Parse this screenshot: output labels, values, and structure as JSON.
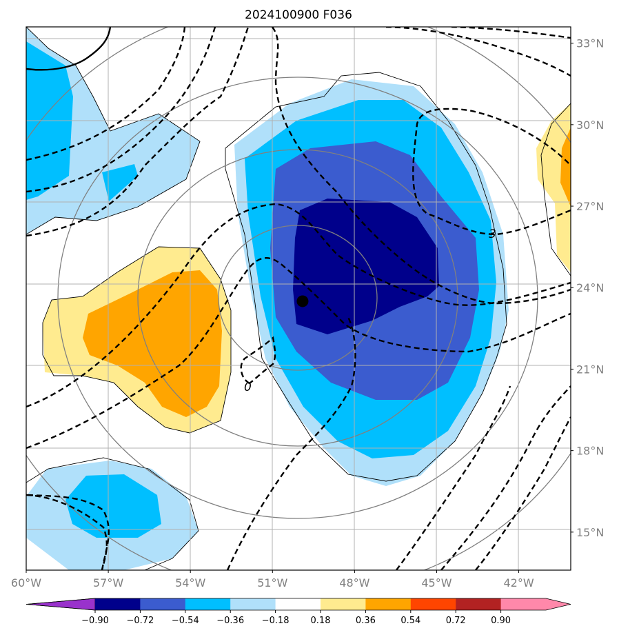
{
  "chart_data": {
    "type": "heatmap",
    "title": "2024100900 F036",
    "xlabel": "",
    "ylabel": "",
    "x_range_deg": [
      -60,
      -40.1
    ],
    "y_range_deg": [
      13.6,
      33.6
    ],
    "x_ticks": [
      "60°W",
      "57°W",
      "54°W",
      "51°W",
      "48°W",
      "45°W",
      "42°W"
    ],
    "x_tick_values": [
      -60,
      -57,
      -54,
      -51,
      -48,
      -45,
      -42
    ],
    "y_ticks": [
      "15°N",
      "18°N",
      "21°N",
      "24°N",
      "27°N",
      "30°N",
      "33°N"
    ],
    "y_tick_values": [
      15,
      18,
      21,
      24,
      27,
      30,
      33
    ],
    "y_axis_side": "right",
    "grid": true,
    "storm_center": {
      "lon": -49.9,
      "lat": 23.5
    },
    "contour_labels": [
      {
        "text": "0",
        "lon": -51.9,
        "lat": 20.7
      },
      {
        "text": "3",
        "lon": -43.0,
        "lat": 25.8
      }
    ],
    "colorbar": {
      "orientation": "horizontal",
      "extend": "both",
      "tick_labels": [
        "−0.90",
        "−0.72",
        "−0.54",
        "−0.36",
        "−0.18",
        "0.18",
        "0.36",
        "0.54",
        "0.72",
        "0.90"
      ],
      "tick_values": [
        -0.9,
        -0.72,
        -0.54,
        -0.36,
        -0.18,
        0.18,
        0.36,
        0.54,
        0.72,
        0.9
      ],
      "colors": [
        "#9932cc",
        "#00008b",
        "#3b5ccf",
        "#00bfff",
        "#b0e0fa",
        "#ffffff",
        "#ffeb8f",
        "#ffa500",
        "#ff4500",
        "#b22222",
        "#ff88aa"
      ]
    }
  }
}
